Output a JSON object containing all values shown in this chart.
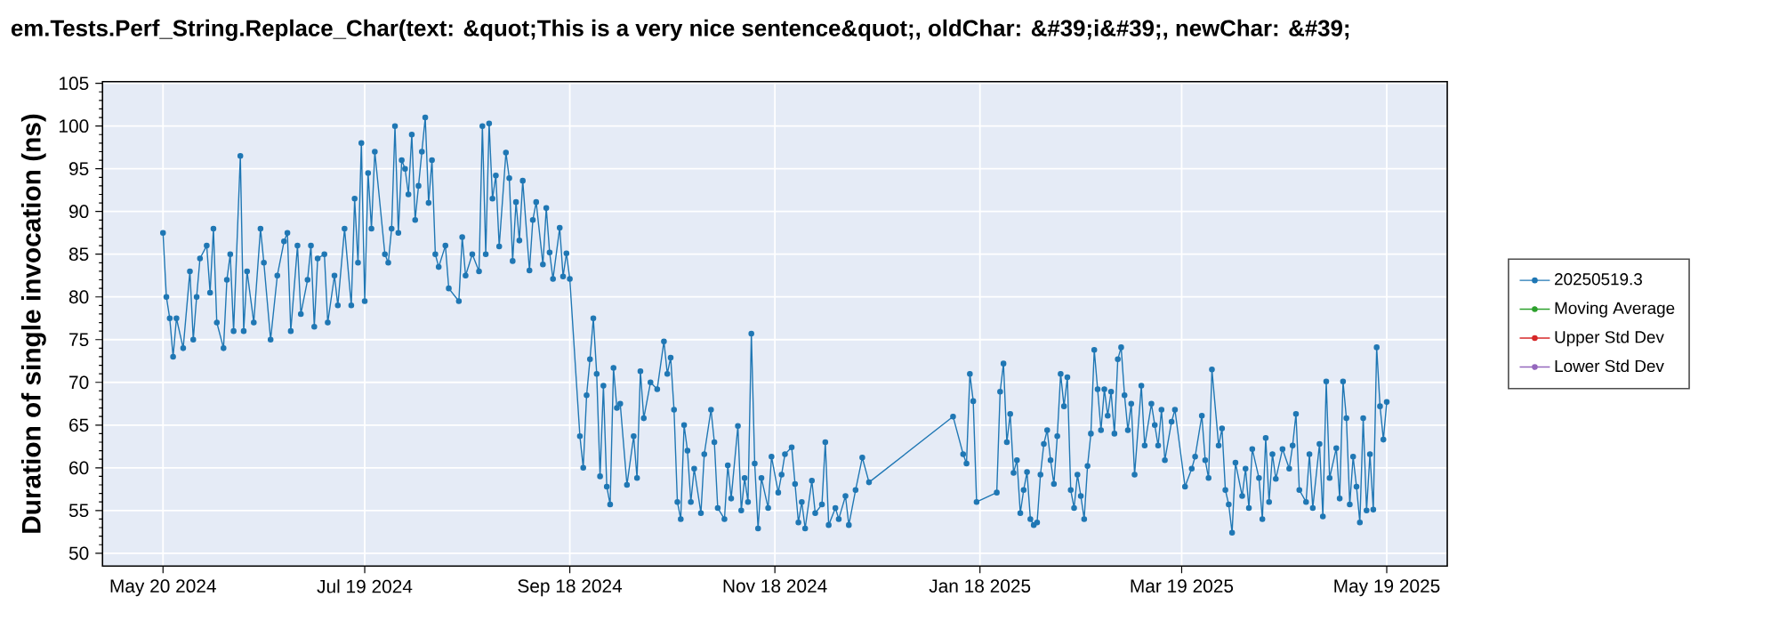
{
  "chart_data": {
    "type": "line",
    "title": "em.Tests.Perf_String.Replace_Char(text: &quot;This is a very nice sentence&quot;, oldChar: &#39;i&#39;, newChar: &#39;",
    "ylabel": "Duration of single invocation (ns)",
    "xlim": [
      "2024-05-02",
      "2025-06-06"
    ],
    "ylim": [
      48.5,
      105.2
    ],
    "xticks": [
      {
        "value": "2024-05-20",
        "label": "May 20 2024"
      },
      {
        "value": "2024-07-19",
        "label": "Jul 19 2024"
      },
      {
        "value": "2024-09-18",
        "label": "Sep 18 2024"
      },
      {
        "value": "2024-11-18",
        "label": "Nov 18 2024"
      },
      {
        "value": "2025-01-18",
        "label": "Jan 18 2025"
      },
      {
        "value": "2025-03-19",
        "label": "Mar 19 2025"
      },
      {
        "value": "2025-05-19",
        "label": "May 19 2025"
      }
    ],
    "yticks": [
      50,
      55,
      60,
      65,
      70,
      75,
      80,
      85,
      90,
      95,
      100,
      105
    ],
    "grid": true,
    "legend": "right",
    "marker": "circle",
    "line_style": "solid",
    "series": [
      {
        "name": "20250519.3",
        "color": "#1f77b4",
        "x": [
          "2024-05-20",
          "2024-05-21",
          "2024-05-22",
          "2024-05-23",
          "2024-05-24",
          "2024-05-26",
          "2024-05-28",
          "2024-05-29",
          "2024-05-30",
          "2024-05-31",
          "2024-06-02",
          "2024-06-03",
          "2024-06-04",
          "2024-06-05",
          "2024-06-07",
          "2024-06-08",
          "2024-06-09",
          "2024-06-10",
          "2024-06-12",
          "2024-06-13",
          "2024-06-14",
          "2024-06-16",
          "2024-06-18",
          "2024-06-19",
          "2024-06-21",
          "2024-06-23",
          "2024-06-25",
          "2024-06-26",
          "2024-06-27",
          "2024-06-29",
          "2024-06-30",
          "2024-07-02",
          "2024-07-03",
          "2024-07-04",
          "2024-07-05",
          "2024-07-07",
          "2024-07-08",
          "2024-07-10",
          "2024-07-11",
          "2024-07-13",
          "2024-07-15",
          "2024-07-16",
          "2024-07-17",
          "2024-07-18",
          "2024-07-19",
          "2024-07-20",
          "2024-07-21",
          "2024-07-22",
          "2024-07-25",
          "2024-07-26",
          "2024-07-27",
          "2024-07-28",
          "2024-07-29",
          "2024-07-30",
          "2024-07-31",
          "2024-08-01",
          "2024-08-02",
          "2024-08-03",
          "2024-08-04",
          "2024-08-05",
          "2024-08-06",
          "2024-08-07",
          "2024-08-08",
          "2024-08-09",
          "2024-08-10",
          "2024-08-12",
          "2024-08-13",
          "2024-08-16",
          "2024-08-17",
          "2024-08-18",
          "2024-08-20",
          "2024-08-22",
          "2024-08-23",
          "2024-08-24",
          "2024-08-25",
          "2024-08-26",
          "2024-08-27",
          "2024-08-28",
          "2024-08-30",
          "2024-08-31",
          "2024-09-01",
          "2024-09-02",
          "2024-09-03",
          "2024-09-04",
          "2024-09-06",
          "2024-09-07",
          "2024-09-08",
          "2024-09-10",
          "2024-09-11",
          "2024-09-12",
          "2024-09-13",
          "2024-09-15",
          "2024-09-16",
          "2024-09-17",
          "2024-09-18",
          "2024-09-21",
          "2024-09-22",
          "2024-09-23",
          "2024-09-24",
          "2024-09-25",
          "2024-09-26",
          "2024-09-27",
          "2024-09-28",
          "2024-09-29",
          "2024-09-30",
          "2024-10-01",
          "2024-10-02",
          "2024-10-03",
          "2024-10-05",
          "2024-10-07",
          "2024-10-08",
          "2024-10-09",
          "2024-10-10",
          "2024-10-12",
          "2024-10-14",
          "2024-10-16",
          "2024-10-17",
          "2024-10-18",
          "2024-10-19",
          "2024-10-20",
          "2024-10-21",
          "2024-10-22",
          "2024-10-23",
          "2024-10-24",
          "2024-10-25",
          "2024-10-27",
          "2024-10-28",
          "2024-10-30",
          "2024-10-31",
          "2024-11-01",
          "2024-11-03",
          "2024-11-04",
          "2024-11-05",
          "2024-11-07",
          "2024-11-08",
          "2024-11-09",
          "2024-11-10",
          "2024-11-11",
          "2024-11-12",
          "2024-11-13",
          "2024-11-14",
          "2024-11-16",
          "2024-11-17",
          "2024-11-19",
          "2024-11-20",
          "2024-11-21",
          "2024-11-23",
          "2024-11-24",
          "2024-11-25",
          "2024-11-26",
          "2024-11-27",
          "2024-11-29",
          "2024-11-30",
          "2024-12-02",
          "2024-12-03",
          "2024-12-04",
          "2024-12-06",
          "2024-12-07",
          "2024-12-09",
          "2024-12-10",
          "2024-12-12",
          "2024-12-14",
          "2024-12-16",
          "2025-01-10",
          "2025-01-13",
          "2025-01-14",
          "2025-01-15",
          "2025-01-16",
          "2025-01-17",
          "2025-01-23",
          "2025-01-24",
          "2025-01-25",
          "2025-01-26",
          "2025-01-27",
          "2025-01-28",
          "2025-01-29",
          "2025-01-30",
          "2025-01-31",
          "2025-02-01",
          "2025-02-02",
          "2025-02-03",
          "2025-02-04",
          "2025-02-05",
          "2025-02-06",
          "2025-02-07",
          "2025-02-08",
          "2025-02-09",
          "2025-02-10",
          "2025-02-11",
          "2025-02-12",
          "2025-02-13",
          "2025-02-14",
          "2025-02-15",
          "2025-02-16",
          "2025-02-17",
          "2025-02-18",
          "2025-02-19",
          "2025-02-20",
          "2025-02-21",
          "2025-02-22",
          "2025-02-23",
          "2025-02-24",
          "2025-02-25",
          "2025-02-26",
          "2025-02-27",
          "2025-02-28",
          "2025-03-01",
          "2025-03-02",
          "2025-03-03",
          "2025-03-04",
          "2025-03-05",
          "2025-03-07",
          "2025-03-08",
          "2025-03-10",
          "2025-03-11",
          "2025-03-12",
          "2025-03-13",
          "2025-03-14",
          "2025-03-16",
          "2025-03-17",
          "2025-03-20",
          "2025-03-22",
          "2025-03-23",
          "2025-03-25",
          "2025-03-26",
          "2025-03-27",
          "2025-03-28",
          "2025-03-30",
          "2025-03-31",
          "2025-04-01",
          "2025-04-02",
          "2025-04-03",
          "2025-04-04",
          "2025-04-06",
          "2025-04-07",
          "2025-04-08",
          "2025-04-09",
          "2025-04-11",
          "2025-04-12",
          "2025-04-13",
          "2025-04-14",
          "2025-04-15",
          "2025-04-16",
          "2025-04-18",
          "2025-04-20",
          "2025-04-21",
          "2025-04-22",
          "2025-04-23",
          "2025-04-25",
          "2025-04-26",
          "2025-04-27",
          "2025-04-29",
          "2025-04-30",
          "2025-05-01",
          "2025-05-02",
          "2025-05-04",
          "2025-05-05",
          "2025-05-06",
          "2025-05-07",
          "2025-05-08",
          "2025-05-09",
          "2025-05-10",
          "2025-05-11",
          "2025-05-12",
          "2025-05-13",
          "2025-05-14",
          "2025-05-15",
          "2025-05-16",
          "2025-05-17",
          "2025-05-18",
          "2025-05-19"
        ],
        "values": [
          87.5,
          80,
          77.5,
          73,
          77.5,
          74,
          83,
          75,
          80,
          84.5,
          86,
          80.5,
          88,
          77,
          74,
          82,
          85,
          76,
          96.5,
          76,
          83,
          77,
          88,
          84,
          75,
          82.5,
          86.5,
          87.5,
          76,
          86,
          78,
          82,
          86,
          76.5,
          84.5,
          85,
          77,
          82.5,
          79,
          88,
          79,
          91.5,
          84,
          98,
          79.5,
          94.5,
          88,
          97,
          85,
          84,
          88,
          100,
          87.5,
          96,
          95,
          92,
          99,
          89,
          93,
          97,
          101,
          91,
          96,
          85,
          83.5,
          86,
          81,
          79.5,
          87,
          82.5,
          85,
          83,
          100,
          85,
          100.3,
          91.5,
          94.2,
          85.9,
          96.9,
          93.9,
          84.2,
          91.1,
          86.6,
          93.6,
          83.1,
          89,
          91.1,
          83.8,
          90.4,
          85.2,
          82.1,
          88.1,
          82.4,
          85.1,
          82.1,
          63.7,
          60,
          68.5,
          72.7,
          77.5,
          71,
          59,
          69.6,
          57.8,
          55.7,
          71.7,
          67,
          67.5,
          58,
          63.7,
          58.8,
          71.3,
          65.8,
          70,
          69.2,
          74.8,
          71,
          72.9,
          66.8,
          56,
          54,
          65,
          62,
          56,
          59.9,
          54.7,
          61.6,
          66.8,
          63,
          55.3,
          54,
          60.3,
          56.4,
          64.9,
          55,
          58.8,
          56,
          75.7,
          60.5,
          52.9,
          58.8,
          55.3,
          61.3,
          57.1,
          59.2,
          61.6,
          62.4,
          58.1,
          53.6,
          56,
          52.9,
          58.5,
          54.7,
          55.7,
          63,
          53.3,
          55.3,
          54,
          56.7,
          53.3,
          57.4,
          61.2,
          58.3,
          66,
          61.6,
          60.5,
          71,
          67.8,
          56,
          57.1,
          68.9,
          72.2,
          63,
          66.3,
          59.4,
          60.9,
          54.7,
          57.4,
          59.5,
          54,
          53.3,
          53.6,
          59.2,
          62.8,
          64.4,
          60.9,
          58.1,
          63.7,
          71,
          67.2,
          70.6,
          57.4,
          55.3,
          59.2,
          56.7,
          54,
          60.2,
          64,
          73.8,
          69.2,
          64.4,
          69.2,
          66.1,
          68.9,
          64,
          72.7,
          74.1,
          68.5,
          64.4,
          67.5,
          59.2,
          69.6,
          62.6,
          67.5,
          65,
          62.6,
          66.8,
          60.9,
          65.4,
          66.8,
          57.8,
          59.9,
          61.3,
          66.1,
          60.9,
          58.8,
          71.5,
          62.6,
          64.6,
          57.4,
          55.7,
          52.4,
          60.6,
          56.7,
          59.9,
          55.3,
          62.2,
          58.8,
          54,
          63.5,
          56,
          61.6,
          58.7,
          62.2,
          59.9,
          62.6,
          66.3,
          57.4,
          56,
          61.6,
          55.3,
          62.8,
          54.3,
          70.1,
          58.8,
          62.3,
          56.4,
          70.1,
          65.8,
          55.7,
          61.3,
          57.8,
          53.6,
          65.8,
          55,
          61.6,
          55.1,
          74.1,
          67.2,
          63.3,
          67.7
        ]
      },
      {
        "name": "Moving Average",
        "color": "#2ca02c"
      },
      {
        "name": "Upper Std Dev",
        "color": "#d62728"
      },
      {
        "name": "Lower Std Dev",
        "color": "#9467bd"
      }
    ]
  }
}
